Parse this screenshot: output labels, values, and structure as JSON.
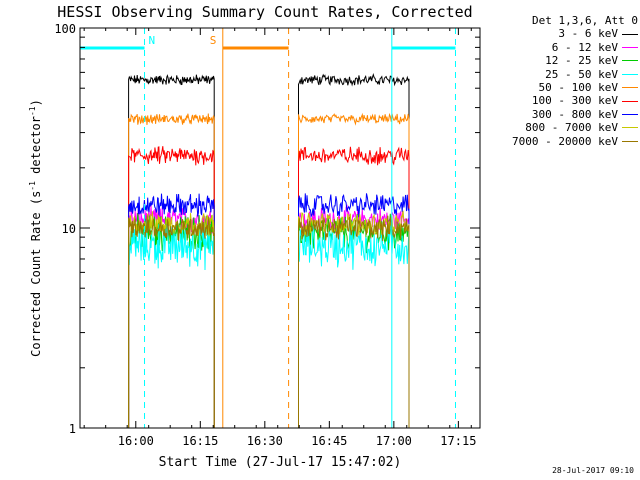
{
  "chart_data": {
    "type": "line",
    "title": "HESSI Observing Summary Count Rates, Corrected",
    "xlabel": "Start Time (27-Jul-17 15:47:02)",
    "ylabel": "Corrected Count Rate (s",
    "ylabel_sup1": "-1",
    "ylabel_mid": " detector",
    "ylabel_sup2": "-1",
    "ylabel_end": ")",
    "ylim": [
      1,
      100
    ],
    "yscale": "log",
    "yticks": [
      {
        "value": 1,
        "label": "1"
      },
      {
        "value": 10,
        "label": "10"
      },
      {
        "value": 100,
        "label": "100"
      }
    ],
    "xlim_minutes_after_start": [
      0,
      93
    ],
    "xticks": [
      {
        "minute": 12.97,
        "label": "16:00"
      },
      {
        "minute": 27.97,
        "label": "16:15"
      },
      {
        "minute": 42.97,
        "label": "16:30"
      },
      {
        "minute": 57.97,
        "label": "16:45"
      },
      {
        "minute": 72.97,
        "label": "17:00"
      },
      {
        "minute": 87.97,
        "label": "17:15"
      }
    ],
    "legend_title": "Det 1,3,6, Att 0",
    "legend_position": "right",
    "series": [
      {
        "name": "3 - 6 keV",
        "color": "#000000",
        "level": 55
      },
      {
        "name": "6 - 12 keV",
        "color": "#ff00ff",
        "level": 11
      },
      {
        "name": "12 - 25 keV",
        "color": "#00cc00",
        "level": 9.5
      },
      {
        "name": "25 - 50 keV",
        "color": "#00ffff",
        "level": 8.2
      },
      {
        "name": "50 - 100 keV",
        "color": "#ff8800",
        "level": 35
      },
      {
        "name": "100 - 300 keV",
        "color": "#ff0000",
        "level": 23
      },
      {
        "name": "300 - 800 keV",
        "color": "#0000ff",
        "level": 13
      },
      {
        "name": "800 - 7000 keV",
        "color": "#c8c800",
        "level": 10.5
      },
      {
        "name": "7000 - 20000 keV",
        "color": "#997700",
        "level": 10
      }
    ],
    "observing_segments_minutes": [
      [
        11.3,
        31.2
      ],
      [
        50.8,
        76.5
      ]
    ],
    "flags": [
      {
        "label": "N",
        "color": "#00ffff",
        "start_min": 0,
        "end_min": 15.0,
        "dashed_at_min": 15.0
      },
      {
        "label": "",
        "color": "#00ffff",
        "start_min": 72.5,
        "end_min": 87.3,
        "solid_at_min": 72.5,
        "dashed_at_min": 87.3
      },
      {
        "label": "S",
        "color": "#ff8800",
        "start_min": 33.2,
        "end_min": 48.5,
        "solid_at_min": 33.2,
        "dashed_at_min": 48.5
      }
    ],
    "grid": false
  },
  "footer": {
    "timestamp": "28-Jul-2017 09:10"
  }
}
